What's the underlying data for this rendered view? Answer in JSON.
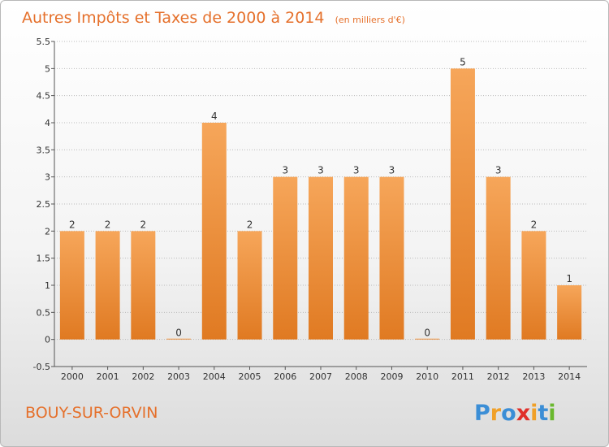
{
  "header": {
    "title": "Autres Impôts et Taxes de 2000 à 2014",
    "unit": "(en milliers d'€)"
  },
  "footer": {
    "commune": "BOUY-SUR-ORVIN",
    "logo": [
      "P",
      "r",
      "o",
      "x",
      "i",
      "t",
      "i"
    ],
    "logo_colors": [
      "#3b8ed6",
      "#f0a028",
      "#3b8ed6",
      "#e0302a",
      "#f0a028",
      "#3b8ed6",
      "#6ab82e"
    ]
  },
  "colors": {
    "bar_light": "#f6a65a",
    "bar_dark": "#e07a22",
    "grid": "#bbbbbb",
    "axis": "#555555"
  },
  "chart_data": {
    "type": "bar",
    "title": "Autres Impôts et Taxes de 2000 à 2014",
    "categories": [
      "2000",
      "2001",
      "2002",
      "2003",
      "2004",
      "2005",
      "2006",
      "2007",
      "2008",
      "2009",
      "2010",
      "2011",
      "2012",
      "2013",
      "2014"
    ],
    "values": [
      2,
      2,
      2,
      0,
      4,
      2,
      3,
      3,
      3,
      3,
      0,
      5,
      3,
      2,
      1
    ],
    "labels": [
      "2",
      "2",
      "2",
      "0",
      "4",
      "2",
      "3",
      "3",
      "3",
      "3",
      "0",
      "5",
      "3",
      "2",
      "1"
    ],
    "yticks": [
      "-0.5",
      "0",
      "0.5",
      "1",
      "1.5",
      "2",
      "2.5",
      "3",
      "3.5",
      "4",
      "4.5",
      "5",
      "5.5"
    ],
    "ylim": [
      -0.5,
      5.5
    ],
    "grid": true,
    "xlabel": "",
    "ylabel": ""
  }
}
